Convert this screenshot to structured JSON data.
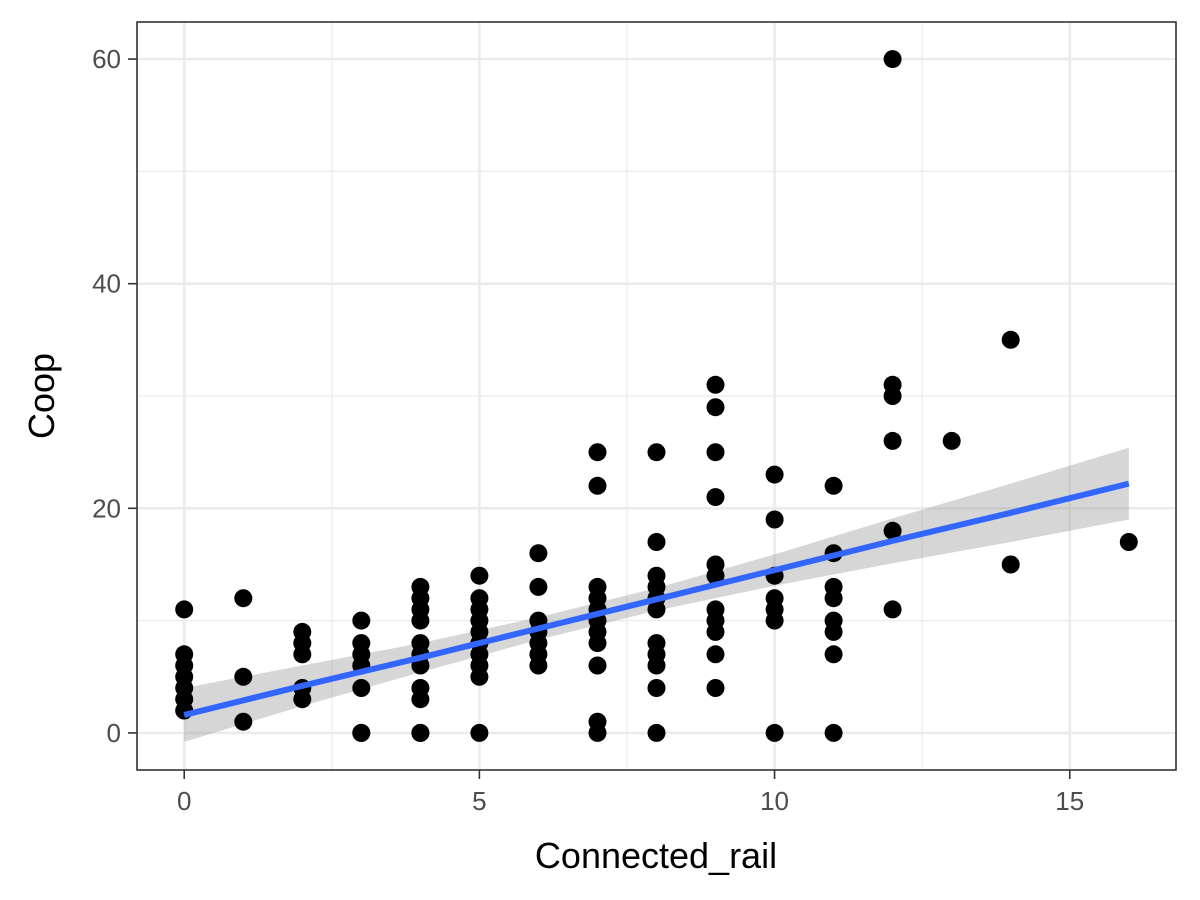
{
  "chart_data": {
    "type": "scatter",
    "title": "",
    "xlabel": "Connected_rail",
    "ylabel": "Coop",
    "xlim": [
      -0.8,
      16.8
    ],
    "ylim": [
      -3.3,
      63.3
    ],
    "x_ticks": [
      0,
      5,
      10,
      15
    ],
    "y_ticks": [
      0,
      20,
      40,
      60
    ],
    "x_minor_ticks": [
      2.5,
      7.5,
      12.5
    ],
    "y_minor_ticks": [
      10,
      30,
      50
    ],
    "grid": true,
    "theme": "bw",
    "point_color": "#000000",
    "smooth": {
      "method": "linear",
      "color": "#3366FF",
      "band_color": "#999999",
      "x": [
        0,
        2,
        4,
        6,
        8,
        10,
        12,
        14,
        16
      ],
      "y": [
        1.6,
        4.2,
        6.7,
        9.3,
        11.9,
        14.5,
        17.1,
        19.6,
        22.2
      ],
      "y_lower": [
        -0.8,
        2.4,
        5.4,
        8.3,
        10.9,
        13.1,
        15.1,
        17.0,
        19.0
      ],
      "y_upper": [
        4.0,
        6.0,
        8.0,
        10.3,
        12.9,
        15.9,
        19.1,
        22.2,
        25.4
      ]
    },
    "points": [
      [
        0,
        11
      ],
      [
        0,
        7
      ],
      [
        0,
        6
      ],
      [
        0,
        5
      ],
      [
        0,
        4
      ],
      [
        0,
        3
      ],
      [
        0,
        2
      ],
      [
        1,
        12
      ],
      [
        1,
        5
      ],
      [
        1,
        1
      ],
      [
        2,
        9
      ],
      [
        2,
        8
      ],
      [
        2,
        7
      ],
      [
        2,
        4
      ],
      [
        2,
        3
      ],
      [
        3,
        10
      ],
      [
        3,
        8
      ],
      [
        3,
        7
      ],
      [
        3,
        6
      ],
      [
        3,
        4
      ],
      [
        3,
        0
      ],
      [
        3,
        0
      ],
      [
        4,
        13
      ],
      [
        4,
        12
      ],
      [
        4,
        11
      ],
      [
        4,
        10
      ],
      [
        4,
        8
      ],
      [
        4,
        7
      ],
      [
        4,
        6
      ],
      [
        4,
        4
      ],
      [
        4,
        3
      ],
      [
        4,
        0
      ],
      [
        4,
        0
      ],
      [
        5,
        14
      ],
      [
        5,
        12
      ],
      [
        5,
        11
      ],
      [
        5,
        10
      ],
      [
        5,
        9
      ],
      [
        5,
        8
      ],
      [
        5,
        7
      ],
      [
        5,
        6
      ],
      [
        5,
        5
      ],
      [
        5,
        0
      ],
      [
        6,
        16
      ],
      [
        6,
        13
      ],
      [
        6,
        10
      ],
      [
        6,
        9
      ],
      [
        6,
        8
      ],
      [
        6,
        7
      ],
      [
        6,
        6
      ],
      [
        7,
        25
      ],
      [
        7,
        22
      ],
      [
        7,
        13
      ],
      [
        7,
        12
      ],
      [
        7,
        11
      ],
      [
        7,
        10
      ],
      [
        7,
        9
      ],
      [
        7,
        8
      ],
      [
        7,
        6
      ],
      [
        7,
        1
      ],
      [
        7,
        0
      ],
      [
        8,
        25
      ],
      [
        8,
        17
      ],
      [
        8,
        14
      ],
      [
        8,
        13
      ],
      [
        8,
        12
      ],
      [
        8,
        11
      ],
      [
        8,
        8
      ],
      [
        8,
        7
      ],
      [
        8,
        6
      ],
      [
        8,
        4
      ],
      [
        8,
        0
      ],
      [
        9,
        31
      ],
      [
        9,
        29
      ],
      [
        9,
        25
      ],
      [
        9,
        21
      ],
      [
        9,
        15
      ],
      [
        9,
        14
      ],
      [
        9,
        11
      ],
      [
        9,
        10
      ],
      [
        9,
        9
      ],
      [
        9,
        7
      ],
      [
        9,
        4
      ],
      [
        10,
        23
      ],
      [
        10,
        19
      ],
      [
        10,
        14
      ],
      [
        10,
        12
      ],
      [
        10,
        11
      ],
      [
        10,
        10
      ],
      [
        10,
        0
      ],
      [
        11,
        22
      ],
      [
        11,
        16
      ],
      [
        11,
        13
      ],
      [
        11,
        12
      ],
      [
        11,
        10
      ],
      [
        11,
        9
      ],
      [
        11,
        7
      ],
      [
        11,
        0
      ],
      [
        12,
        60
      ],
      [
        12,
        31
      ],
      [
        12,
        30
      ],
      [
        12,
        26
      ],
      [
        12,
        18
      ],
      [
        12,
        11
      ],
      [
        13,
        26
      ],
      [
        14,
        35
      ],
      [
        14,
        15
      ],
      [
        16,
        17
      ]
    ]
  }
}
